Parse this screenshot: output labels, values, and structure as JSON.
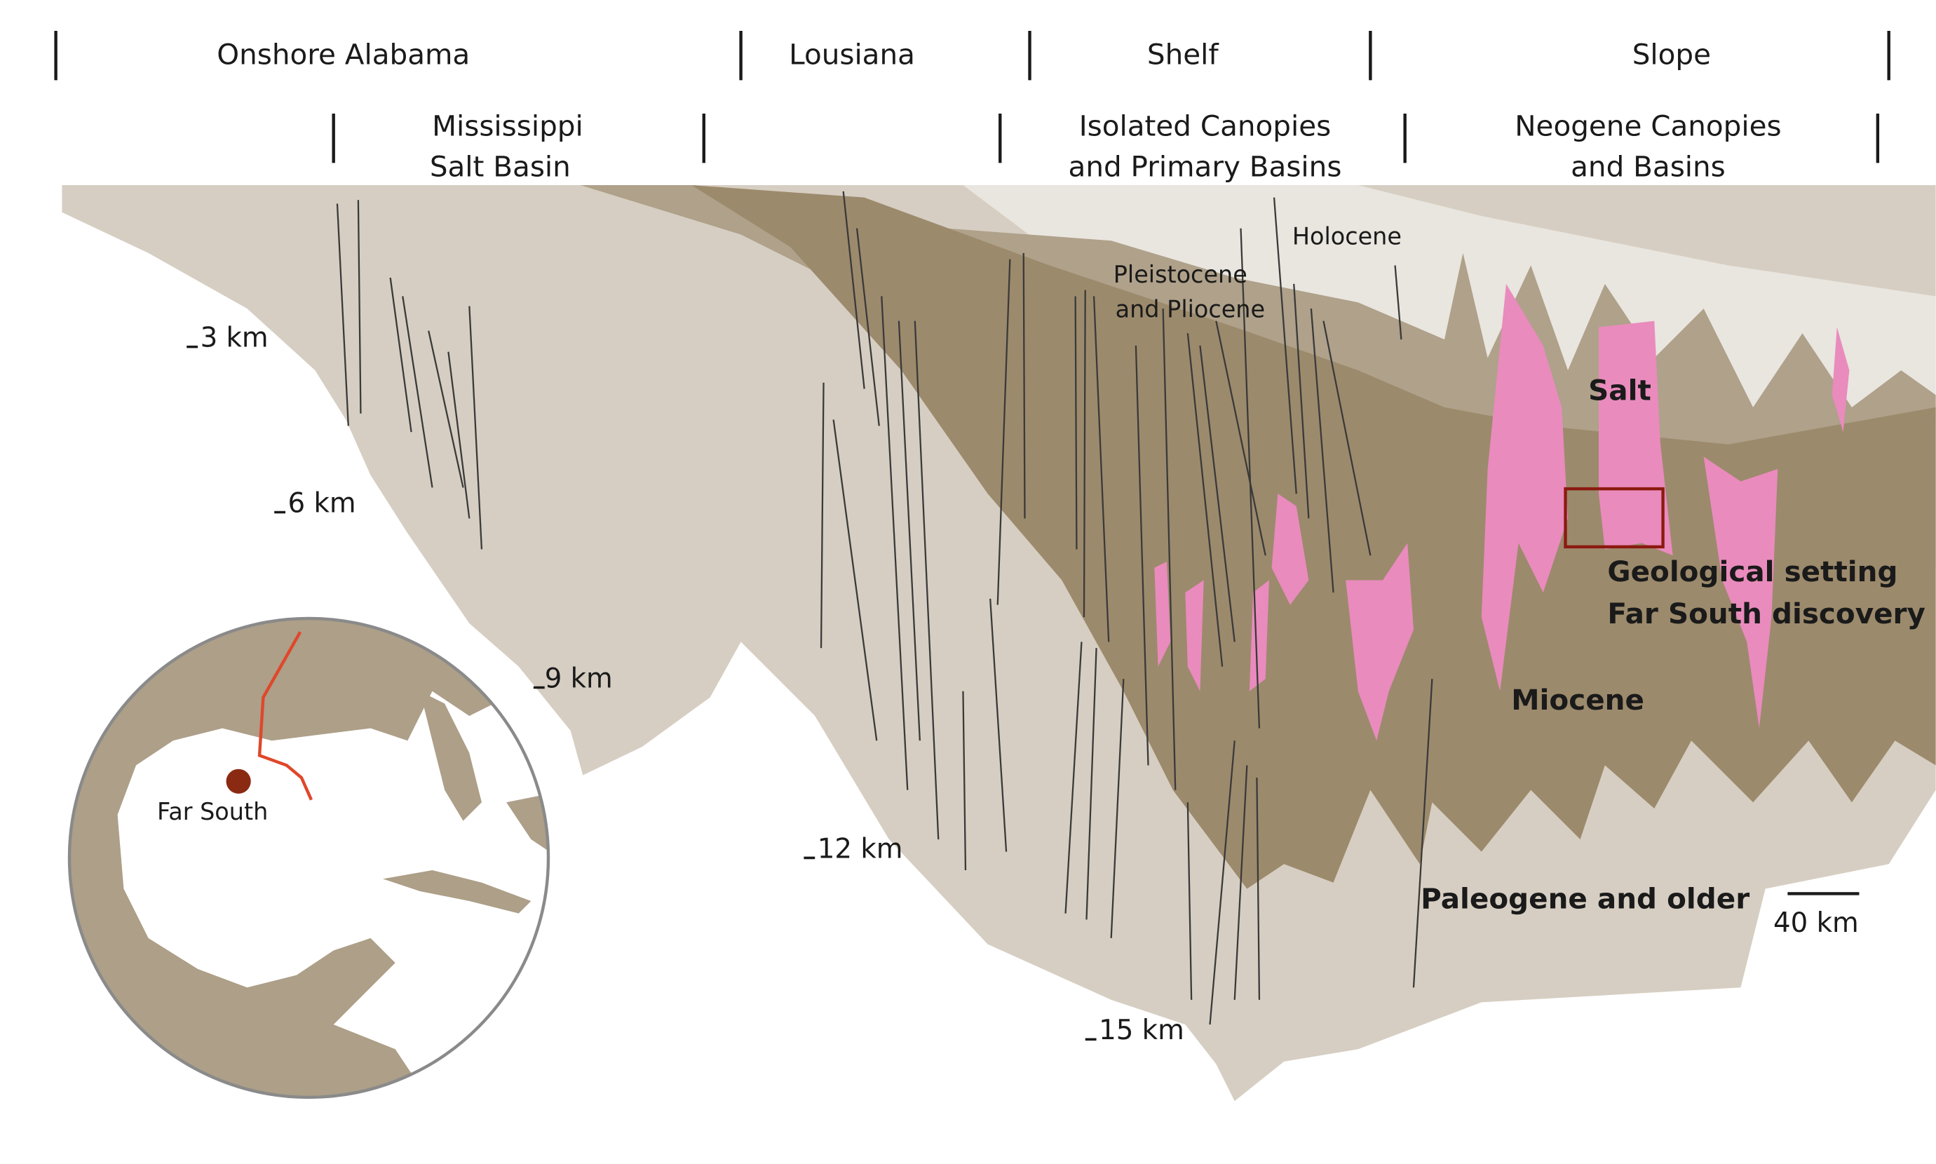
{
  "header": {
    "regions_top": [
      "Onshore Alabama",
      "Lousiana",
      "Shelf",
      "Slope"
    ],
    "regions_bottom": [
      [
        "Mississippi",
        "Salt Basin"
      ],
      [
        "Isolated Canopies",
        "and Primary Basins"
      ],
      [
        "Neogene Canopies",
        "and Basins"
      ]
    ]
  },
  "depths": [
    "3 km",
    "6 km",
    "9 km",
    "12 km",
    "15 km"
  ],
  "layers": {
    "holocene": "Holocene",
    "pleistocene": [
      "Pleistocene",
      "and Pliocene"
    ],
    "salt": "Salt",
    "miocene": "Miocene",
    "paleogene": "Paleogene and older"
  },
  "annotation": [
    "Geological setting",
    "Far South discovery"
  ],
  "map": {
    "label": "Far South"
  },
  "scale": "40 km"
}
